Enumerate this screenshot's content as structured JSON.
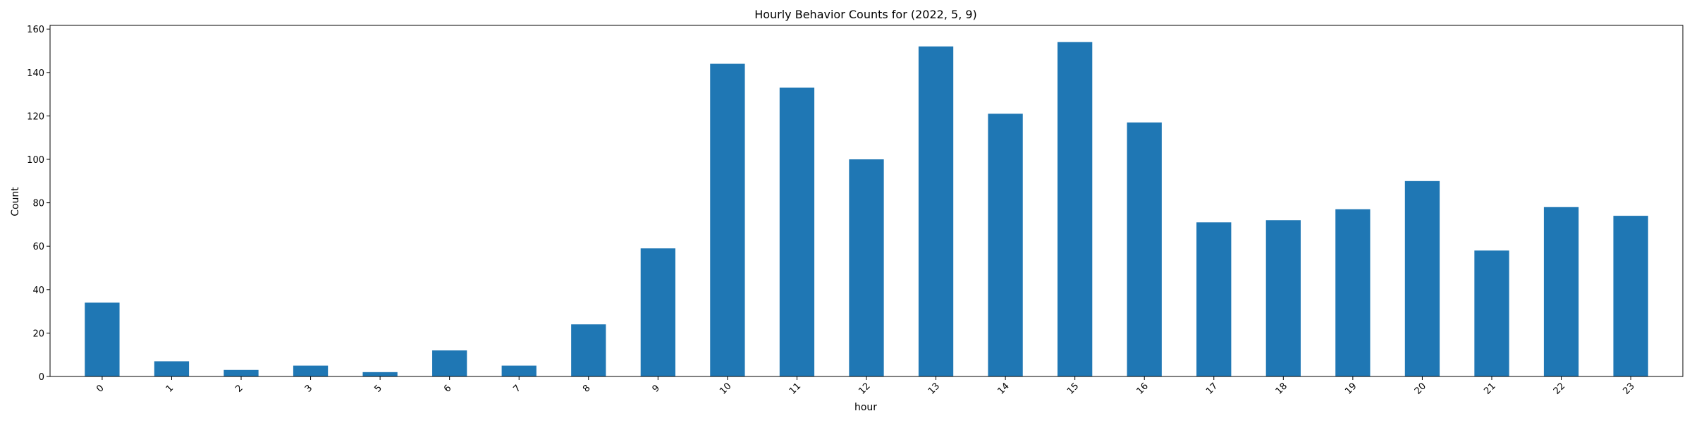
{
  "chart_data": {
    "type": "bar",
    "title": "Hourly Behavior Counts for (2022, 5, 9)",
    "xlabel": "hour",
    "ylabel": "Count",
    "categories": [
      "0",
      "1",
      "2",
      "3",
      "5",
      "6",
      "7",
      "8",
      "9",
      "10",
      "11",
      "12",
      "13",
      "14",
      "15",
      "16",
      "17",
      "18",
      "19",
      "20",
      "21",
      "22",
      "23"
    ],
    "values": [
      34,
      7,
      3,
      5,
      2,
      12,
      5,
      24,
      59,
      144,
      133,
      100,
      152,
      121,
      154,
      117,
      71,
      72,
      77,
      90,
      58,
      78,
      74
    ],
    "ylim": [
      0,
      161.7
    ],
    "yticks": [
      0,
      20,
      40,
      60,
      80,
      100,
      120,
      140,
      160
    ],
    "bar_color": "#1f77b4",
    "grid": false,
    "legend": "none"
  }
}
